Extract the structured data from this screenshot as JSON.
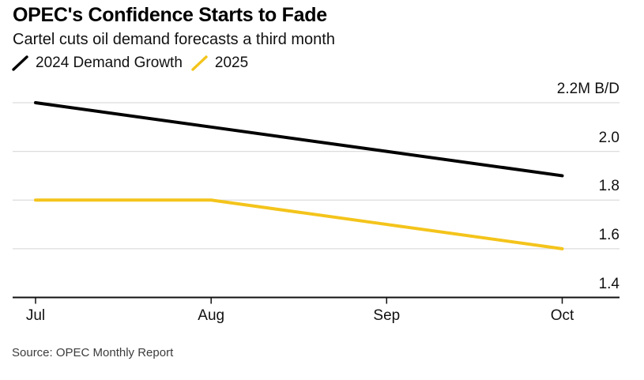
{
  "chart_data": {
    "type": "line",
    "title": "OPEC's Confidence Starts to Fade",
    "subtitle": "Cartel cuts oil demand forecasts a third month",
    "source": "Source: OPEC Monthly Report",
    "unit": "M B/D",
    "x": [
      "Jul",
      "Aug",
      "Sep",
      "Oct"
    ],
    "series": [
      {
        "name": "2024 Demand Growth",
        "color": "#000000",
        "values": [
          2.2,
          2.1,
          2.0,
          1.9
        ]
      },
      {
        "name": "2025",
        "color": "#F4C41B",
        "values": [
          1.8,
          1.8,
          1.7,
          1.6
        ]
      }
    ],
    "ylim": [
      1.4,
      2.2
    ],
    "yticks": [
      {
        "value": 2.2,
        "label": "2.2M B/D"
      },
      {
        "value": 2.0,
        "label": "2.0"
      },
      {
        "value": 1.8,
        "label": "1.8"
      },
      {
        "value": 1.6,
        "label": "1.6"
      },
      {
        "value": 1.4,
        "label": "1.4"
      }
    ],
    "grid": "horizontal",
    "legend_position": "top-left",
    "colors": {
      "gridline": "#dcdcdc",
      "axis": "#111111",
      "text": "#111111",
      "source_text": "#3c3c3c",
      "background": "#ffffff"
    }
  }
}
